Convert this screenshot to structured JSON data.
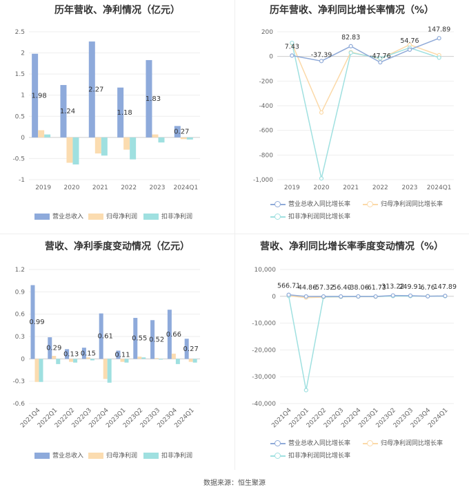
{
  "colors": {
    "revenue": "#8eaadb",
    "netprofit": "#fbdcb0",
    "deducted": "#9fe0e0",
    "line_rev": "#8faad8",
    "line_np": "#fbd9a8",
    "line_ded": "#9fe0e0"
  },
  "source": "数据来源：恒生聚源",
  "chart_data": [
    {
      "type": "bar",
      "title": "历年营收、净利情况（亿元）",
      "categories": [
        "2019",
        "2020",
        "2021",
        "2022",
        "2023",
        "2024Q1"
      ],
      "series": [
        {
          "name": "营业总收入",
          "values": [
            1.98,
            1.24,
            2.27,
            1.18,
            1.83,
            0.27
          ]
        },
        {
          "name": "归母净利润",
          "values": [
            0.17,
            -0.6,
            -0.38,
            -0.29,
            0.07,
            -0.04
          ]
        },
        {
          "name": "扣非净利润",
          "values": [
            0.07,
            -0.64,
            -0.43,
            -0.52,
            -0.12,
            -0.05
          ]
        }
      ],
      "data_labels": [
        "1.98",
        "1.24",
        "2.27",
        "1.18",
        "1.83",
        "0.27"
      ],
      "ylim": [
        -1,
        2.5
      ],
      "yticks": [
        "2.5",
        "2",
        "1.5",
        "1",
        "0.5",
        "0",
        "-0.5",
        "-1"
      ],
      "grid": true,
      "legend": "bottom"
    },
    {
      "type": "line",
      "title": "历年营收、净利同比增长率情况（%）",
      "categories": [
        "2019",
        "2020",
        "2021",
        "2022",
        "2023",
        "2024Q1"
      ],
      "series": [
        {
          "name": "营业总收入同比增长率",
          "values": [
            7.43,
            -37.39,
            82.83,
            -47.76,
            54.76,
            147.89
          ]
        },
        {
          "name": "归母净利润同比增长率",
          "values": [
            105,
            -455,
            35,
            -20,
            95,
            10
          ]
        },
        {
          "name": "扣非净利润同比增长率",
          "values": [
            110,
            -990,
            30,
            -15,
            70,
            -10
          ]
        }
      ],
      "data_labels": [
        "7.43",
        "-37.39",
        "82.83",
        "-47.76",
        "54.76",
        "147.89"
      ],
      "ylim": [
        -1000,
        200
      ],
      "yticks": [
        "200",
        "0",
        "-200",
        "-400",
        "-600",
        "-800",
        "-1,000"
      ],
      "grid": true,
      "legend": "bottom"
    },
    {
      "type": "bar",
      "title": "营收、净利季度变动情况（亿元）",
      "categories": [
        "2021Q4",
        "2022Q1",
        "2022Q2",
        "2022Q3",
        "2022Q4",
        "2023Q1",
        "2023Q2",
        "2023Q3",
        "2023Q4",
        "2024Q1"
      ],
      "series": [
        {
          "name": "营业总收入",
          "values": [
            0.99,
            0.29,
            0.13,
            0.15,
            0.61,
            0.11,
            0.55,
            0.52,
            0.66,
            0.27
          ]
        },
        {
          "name": "归母净利润",
          "values": [
            -0.31,
            0.04,
            -0.04,
            0.02,
            -0.27,
            -0.04,
            0.03,
            0.01,
            0.07,
            -0.04
          ]
        },
        {
          "name": "扣非净利润",
          "values": [
            -0.31,
            -0.07,
            -0.05,
            -0.02,
            -0.32,
            -0.05,
            0.02,
            -0.01,
            -0.07,
            -0.05
          ]
        }
      ],
      "data_labels": [
        "0.99",
        "0.29",
        "0.13",
        "0.15",
        "0.61",
        "0.11",
        "0.55",
        "0.52",
        "0.66",
        "0.27"
      ],
      "ylim": [
        -0.6,
        1.2
      ],
      "yticks": [
        "1.2",
        "0.9",
        "0.6",
        "0.3",
        "0",
        "-0.3",
        "-0.6"
      ],
      "grid": true,
      "legend": "bottom"
    },
    {
      "type": "line",
      "title": "营收、净利同比增长率季度变动情况（%）",
      "categories": [
        "2021Q4",
        "2022Q1",
        "2022Q2",
        "2022Q3",
        "2022Q4",
        "2023Q1",
        "2023Q2",
        "2023Q3",
        "2023Q4",
        "2024Q1"
      ],
      "series": [
        {
          "name": "营业总收入同比增长率",
          "values": [
            566.71,
            -44.86,
            -57.32,
            -56.4,
            -38.06,
            -61.73,
            313.22,
            249.91,
            6.76,
            147.89
          ]
        },
        {
          "name": "归母净利润同比增长率",
          "values": [
            200,
            -500,
            -300,
            -200,
            -100,
            -150,
            150,
            120,
            50,
            80
          ]
        },
        {
          "name": "扣非净利润同比增长率",
          "values": [
            150,
            -35000,
            -200,
            -150,
            -80,
            -100,
            100,
            80,
            30,
            50
          ]
        }
      ],
      "data_labels": [
        "566.71",
        "-44.86",
        "-57.32",
        "-56.40",
        "-38.06",
        "-61.73",
        "313.22",
        "249.91",
        "6.76",
        "147.89"
      ],
      "ylim": [
        -40000,
        10000
      ],
      "yticks": [
        "10,000",
        "0",
        "-10,000",
        "-20,000",
        "-30,000",
        "-40,000"
      ],
      "grid": true,
      "legend": "bottom"
    }
  ]
}
